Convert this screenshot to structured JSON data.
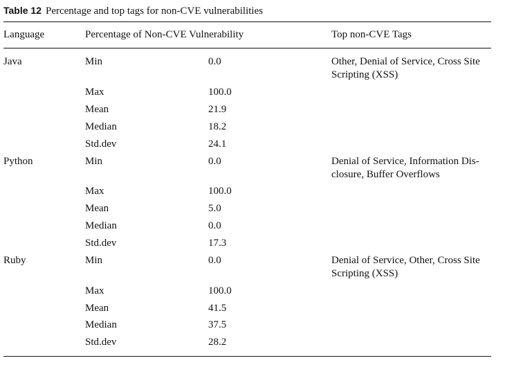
{
  "caption": {
    "label": "Table 12",
    "text": "Percentage and top tags for non-CVE vulnerabilities"
  },
  "headers": {
    "language": "Language",
    "percentage": "Percentage of Non-CVE Vulnerability",
    "tags": "Top non-CVE Tags"
  },
  "groups": [
    {
      "language": "Java",
      "tags": "Other, Denial of Service, Cross Site Scripting (XSS)",
      "stats": [
        {
          "name": "Min",
          "value": "0.0"
        },
        {
          "name": "Max",
          "value": "100.0"
        },
        {
          "name": "Mean",
          "value": "21.9"
        },
        {
          "name": "Median",
          "value": "18.2"
        },
        {
          "name": "Std.dev",
          "value": "24.1"
        }
      ]
    },
    {
      "language": "Python",
      "tags": "Denial of Service, Information Dis-closure, Buffer Overflows",
      "stats": [
        {
          "name": "Min",
          "value": "0.0"
        },
        {
          "name": "Max",
          "value": "100.0"
        },
        {
          "name": "Mean",
          "value": "5.0"
        },
        {
          "name": "Median",
          "value": "0.0"
        },
        {
          "name": "Std.dev",
          "value": "17.3"
        }
      ]
    },
    {
      "language": "Ruby",
      "tags": "Denial of Service, Other, Cross Site Scripting (XSS)",
      "stats": [
        {
          "name": "Min",
          "value": "0.0"
        },
        {
          "name": "Max",
          "value": "100.0"
        },
        {
          "name": "Mean",
          "value": "41.5"
        },
        {
          "name": "Median",
          "value": "37.5"
        },
        {
          "name": "Std.dev",
          "value": "28.2"
        }
      ]
    }
  ]
}
